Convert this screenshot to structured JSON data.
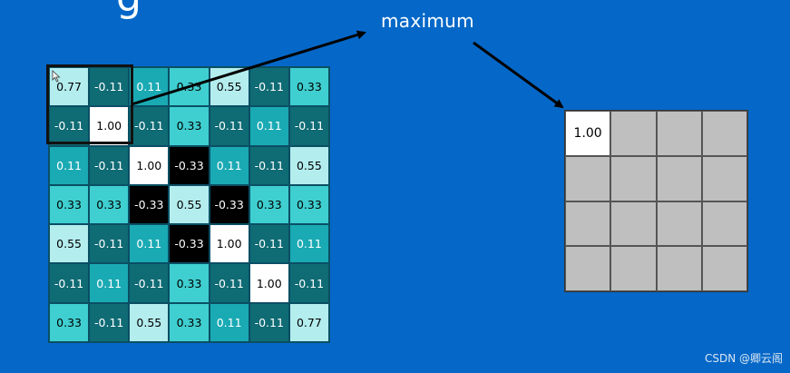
{
  "title_fragment": "g",
  "label": "maximum",
  "watermark": "CSDN @卿云阁",
  "colors": {
    "background": "#0568c8",
    "dark_teal": "#0f6b74",
    "teal": "#1aaab4",
    "light_teal": "#3fcfd0",
    "pale_teal": "#b4edee",
    "white": "#ffffff",
    "black": "#000000",
    "pool_gray": "#c0bfc0"
  },
  "input_grid": [
    [
      "0.77",
      "-0.11",
      "0.11",
      "0.33",
      "0.55",
      "-0.11",
      "0.33"
    ],
    [
      "-0.11",
      "1.00",
      "-0.11",
      "0.33",
      "-0.11",
      "0.11",
      "-0.11"
    ],
    [
      "0.11",
      "-0.11",
      "1.00",
      "-0.33",
      "0.11",
      "-0.11",
      "0.55"
    ],
    [
      "0.33",
      "0.33",
      "-0.33",
      "0.55",
      "-0.33",
      "0.33",
      "0.33"
    ],
    [
      "0.55",
      "-0.11",
      "0.11",
      "-0.33",
      "1.00",
      "-0.11",
      "0.11"
    ],
    [
      "-0.11",
      "0.11",
      "-0.11",
      "0.33",
      "-0.11",
      "1.00",
      "-0.11"
    ],
    [
      "0.33",
      "-0.11",
      "0.55",
      "0.33",
      "0.11",
      "-0.11",
      "0.77"
    ]
  ],
  "pooled_grid": [
    [
      "1.00",
      "",
      "",
      ""
    ],
    [
      "",
      "",
      "",
      ""
    ],
    [
      "",
      "",
      "",
      ""
    ],
    [
      "",
      "",
      "",
      ""
    ]
  ]
}
